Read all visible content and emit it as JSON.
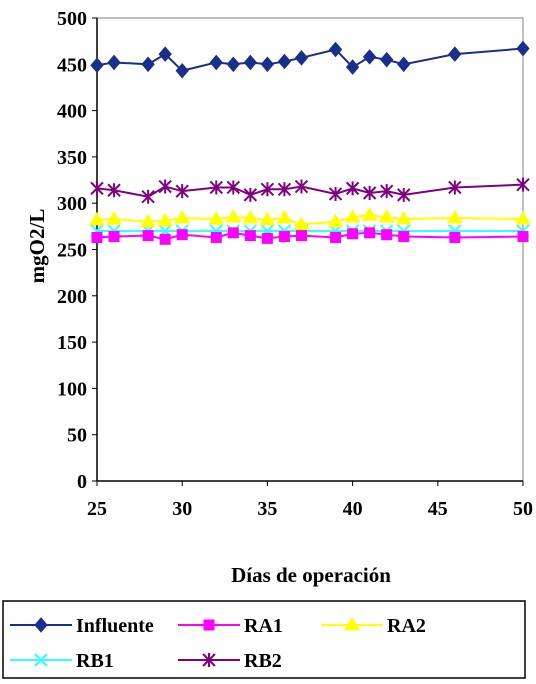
{
  "chart_data": {
    "type": "line",
    "title": "",
    "xlabel": "Días de operación",
    "ylabel": "mgO2/L",
    "xlim": [
      25,
      50
    ],
    "ylim": [
      0,
      500
    ],
    "xticks": [
      25,
      30,
      35,
      40,
      45,
      50
    ],
    "yticks": [
      0,
      50,
      100,
      150,
      200,
      250,
      300,
      350,
      400,
      450,
      500
    ],
    "grid": false,
    "legend_position": "bottom",
    "series": [
      {
        "name": "Influente",
        "color": "#1a2e8c",
        "marker": "diamond",
        "x": [
          25,
          26,
          28,
          29,
          30,
          32,
          33,
          34,
          35,
          36,
          37,
          39,
          40,
          41,
          42,
          43,
          46,
          50
        ],
        "y": [
          449,
          452,
          450,
          461,
          443,
          452,
          450,
          452,
          450,
          453,
          457,
          466,
          447,
          458,
          455,
          450,
          461,
          467
        ]
      },
      {
        "name": "RA1",
        "color": "#ff00ff",
        "marker": "square",
        "x": [
          25,
          26,
          28,
          29,
          30,
          32,
          33,
          34,
          35,
          36,
          37,
          39,
          40,
          41,
          42,
          43,
          46,
          50
        ],
        "y": [
          263,
          264,
          265,
          261,
          266,
          263,
          268,
          265,
          262,
          264,
          265,
          263,
          267,
          268,
          266,
          264,
          263,
          264
        ]
      },
      {
        "name": "RA2",
        "color": "#ffff00",
        "marker": "triangle",
        "x": [
          25,
          26,
          28,
          29,
          30,
          32,
          33,
          34,
          35,
          36,
          37,
          39,
          40,
          41,
          42,
          43,
          46,
          50
        ],
        "y": [
          282,
          283,
          280,
          281,
          284,
          283,
          285,
          284,
          282,
          284,
          277,
          280,
          285,
          287,
          285,
          283,
          284,
          283
        ]
      },
      {
        "name": "RB1",
        "color": "#33ffff",
        "marker": "asterisk",
        "x": [
          25,
          26,
          28,
          29,
          30,
          32,
          33,
          34,
          35,
          36,
          37,
          39,
          40,
          41,
          42,
          43,
          46,
          50
        ],
        "y": [
          270,
          270,
          270,
          270,
          270,
          270,
          270,
          270,
          270,
          270,
          270,
          270,
          270,
          270,
          270,
          270,
          270,
          270
        ]
      },
      {
        "name": "RB2",
        "color": "#800080",
        "marker": "star",
        "x": [
          25,
          26,
          28,
          29,
          30,
          32,
          33,
          34,
          35,
          36,
          37,
          39,
          40,
          41,
          42,
          43,
          46,
          50
        ],
        "y": [
          316,
          314,
          307,
          318,
          313,
          317,
          317,
          309,
          315,
          315,
          318,
          310,
          316,
          311,
          313,
          309,
          317,
          320
        ]
      }
    ]
  }
}
